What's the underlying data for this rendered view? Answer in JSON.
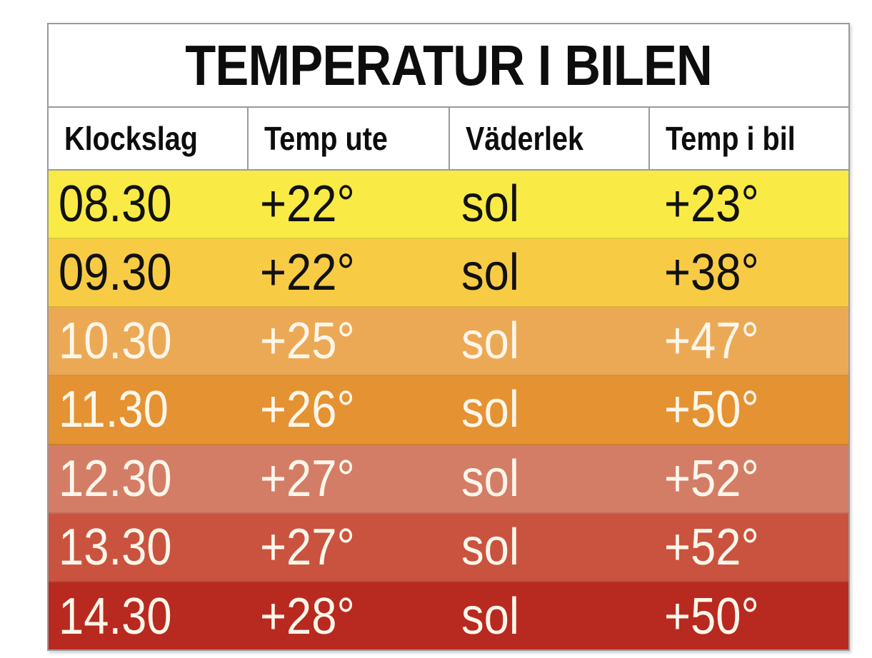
{
  "chart_data": {
    "type": "table",
    "title": "TEMPERATUR I BILEN",
    "columns": [
      "Klockslag",
      "Temp ute",
      "Väderlek",
      "Temp i bil"
    ],
    "rows": [
      {
        "cells": [
          "08.30",
          "+22°",
          "sol",
          "+23°"
        ],
        "bg": "#faea45",
        "fg": "#111111"
      },
      {
        "cells": [
          "09.30",
          "+22°",
          "sol",
          "+38°"
        ],
        "bg": "#f8cb45",
        "fg": "#111111"
      },
      {
        "cells": [
          "10.30",
          "+25°",
          "sol",
          "+47°"
        ],
        "bg": "#eca955",
        "fg": "#fdf6ea"
      },
      {
        "cells": [
          "11.30",
          "+26°",
          "sol",
          "+50°"
        ],
        "bg": "#e49232",
        "fg": "#fdf6ea"
      },
      {
        "cells": [
          "12.30",
          "+27°",
          "sol",
          "+52°"
        ],
        "bg": "#d47d66",
        "fg": "#fdf6ea"
      },
      {
        "cells": [
          "13.30",
          "+27°",
          "sol",
          "+52°"
        ],
        "bg": "#c9533f",
        "fg": "#fdf6ea"
      },
      {
        "cells": [
          "14.30",
          "+28°",
          "sol",
          "+50°"
        ],
        "bg": "#b8291f",
        "fg": "#fdf6ea"
      }
    ]
  }
}
